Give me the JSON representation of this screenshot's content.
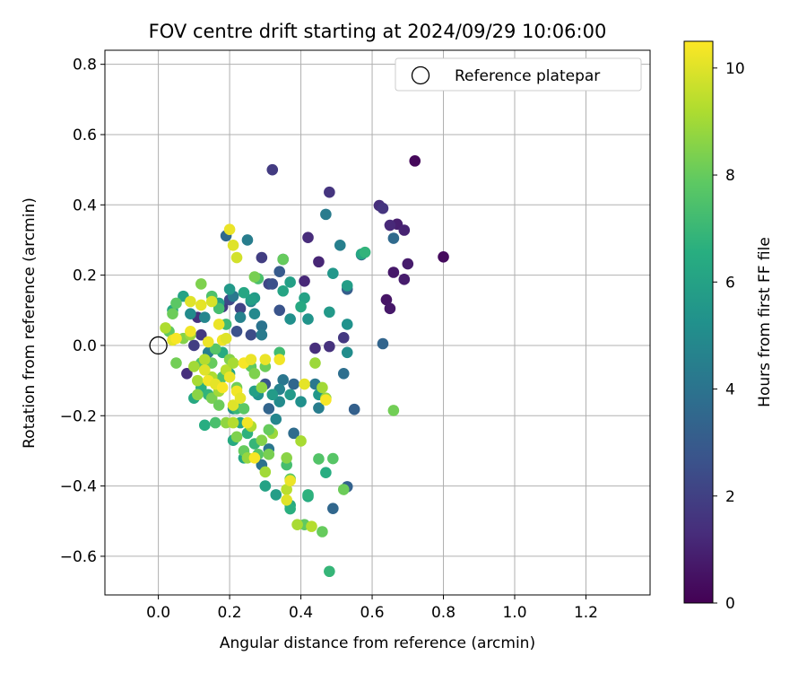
{
  "chart_data": {
    "type": "scatter",
    "title": "FOV centre drift starting at 2024/09/29 10:06:00",
    "xlabel": "Angular distance from reference (arcmin)",
    "ylabel": "Rotation from reference (arcmin)",
    "xlim": [
      -0.15,
      1.38
    ],
    "ylim": [
      -0.71,
      0.84
    ],
    "xticks": [
      0.0,
      0.2,
      0.4,
      0.6,
      0.8,
      1.0,
      1.2
    ],
    "xtick_labels": [
      "0.0",
      "0.2",
      "0.4",
      "0.6",
      "0.8",
      "1.0",
      "1.2"
    ],
    "yticks": [
      -0.6,
      -0.4,
      -0.2,
      0.0,
      0.2,
      0.4,
      0.6,
      0.8
    ],
    "ytick_labels": [
      "−0.6",
      "−0.4",
      "−0.2",
      "0.0",
      "0.2",
      "0.4",
      "0.6",
      "0.8"
    ],
    "grid": true,
    "legend": {
      "position": "top-right",
      "entries": [
        {
          "label": "Reference platepar",
          "marker": "open-circle"
        }
      ]
    },
    "reference_point": {
      "x": 0.0,
      "y": 0.0
    },
    "colorbar": {
      "label": "Hours from first FF file",
      "colormap": "viridis",
      "range": [
        0,
        10.5
      ],
      "ticks": [
        0,
        2,
        4,
        6,
        8,
        10
      ],
      "tick_labels": [
        "0",
        "2",
        "4",
        "6",
        "8",
        "10"
      ]
    },
    "points": [
      {
        "x": 0.72,
        "y": 0.525,
        "h": 0.2
      },
      {
        "x": 0.8,
        "y": 0.252,
        "h": 0.3
      },
      {
        "x": 0.67,
        "y": 0.345,
        "h": 0.9
      },
      {
        "x": 0.69,
        "y": 0.328,
        "h": 1.0
      },
      {
        "x": 0.7,
        "y": 0.232,
        "h": 0.8
      },
      {
        "x": 0.66,
        "y": 0.208,
        "h": 0.7
      },
      {
        "x": 0.69,
        "y": 0.188,
        "h": 0.8
      },
      {
        "x": 0.64,
        "y": 0.13,
        "h": 0.6
      },
      {
        "x": 0.65,
        "y": 0.105,
        "h": 0.7
      },
      {
        "x": 0.62,
        "y": 0.398,
        "h": 1.4
      },
      {
        "x": 0.63,
        "y": 0.39,
        "h": 1.6
      },
      {
        "x": 0.65,
        "y": 0.342,
        "h": 1.2
      },
      {
        "x": 0.32,
        "y": 0.5,
        "h": 1.8
      },
      {
        "x": 0.48,
        "y": 0.436,
        "h": 1.6
      },
      {
        "x": 0.42,
        "y": 0.307,
        "h": 1.3
      },
      {
        "x": 0.45,
        "y": 0.238,
        "h": 1.1
      },
      {
        "x": 0.41,
        "y": 0.183,
        "h": 1.2
      },
      {
        "x": 0.44,
        "y": -0.008,
        "h": 1.4
      },
      {
        "x": 0.48,
        "y": -0.003,
        "h": 1.5
      },
      {
        "x": 0.52,
        "y": 0.022,
        "h": 1.7
      },
      {
        "x": 0.29,
        "y": 0.25,
        "h": 1.9
      },
      {
        "x": 0.23,
        "y": 0.105,
        "h": 2.1
      },
      {
        "x": 0.18,
        "y": 0.11,
        "h": 1.8
      },
      {
        "x": 0.11,
        "y": 0.08,
        "h": 1.5
      },
      {
        "x": 0.12,
        "y": 0.03,
        "h": 1.7
      },
      {
        "x": 0.08,
        "y": -0.08,
        "h": 1.4
      },
      {
        "x": 0.1,
        "y": 0.0,
        "h": 1.9
      },
      {
        "x": 0.31,
        "y": 0.175,
        "h": 2.2
      },
      {
        "x": 0.2,
        "y": 0.13,
        "h": 2.3
      },
      {
        "x": 0.26,
        "y": 0.03,
        "h": 2.4
      },
      {
        "x": 0.66,
        "y": 0.305,
        "h": 3.6
      },
      {
        "x": 0.63,
        "y": 0.005,
        "h": 3.4
      },
      {
        "x": 0.55,
        "y": -0.182,
        "h": 3.2
      },
      {
        "x": 0.53,
        "y": -0.402,
        "h": 3.3
      },
      {
        "x": 0.49,
        "y": -0.464,
        "h": 3.5
      },
      {
        "x": 0.52,
        "y": -0.08,
        "h": 3.8
      },
      {
        "x": 0.57,
        "y": 0.258,
        "h": 3.0
      },
      {
        "x": 0.53,
        "y": 0.16,
        "h": 3.1
      },
      {
        "x": 0.34,
        "y": 0.21,
        "h": 3.0
      },
      {
        "x": 0.35,
        "y": 0.245,
        "h": 2.9
      },
      {
        "x": 0.3,
        "y": -0.11,
        "h": 2.8
      },
      {
        "x": 0.31,
        "y": -0.18,
        "h": 3.4
      },
      {
        "x": 0.38,
        "y": -0.25,
        "h": 3.7
      },
      {
        "x": 0.38,
        "y": -0.11,
        "h": 3.5
      },
      {
        "x": 0.31,
        "y": -0.295,
        "h": 4.1
      },
      {
        "x": 0.29,
        "y": -0.34,
        "h": 3.9
      },
      {
        "x": 0.32,
        "y": 0.175,
        "h": 2.6
      },
      {
        "x": 0.34,
        "y": 0.1,
        "h": 2.7
      },
      {
        "x": 0.22,
        "y": 0.04,
        "h": 2.6
      },
      {
        "x": 0.47,
        "y": 0.373,
        "h": 4.3
      },
      {
        "x": 0.51,
        "y": 0.285,
        "h": 4.5
      },
      {
        "x": 0.25,
        "y": 0.3,
        "h": 4.4
      },
      {
        "x": 0.19,
        "y": 0.312,
        "h": 3.6
      },
      {
        "x": 0.44,
        "y": -0.11,
        "h": 4.2
      },
      {
        "x": 0.45,
        "y": -0.178,
        "h": 4.4
      },
      {
        "x": 0.35,
        "y": -0.098,
        "h": 4.1
      },
      {
        "x": 0.34,
        "y": -0.125,
        "h": 4.6
      },
      {
        "x": 0.33,
        "y": -0.21,
        "h": 4.8
      },
      {
        "x": 0.29,
        "y": 0.055,
        "h": 4.0
      },
      {
        "x": 0.29,
        "y": 0.03,
        "h": 4.3
      },
      {
        "x": 0.26,
        "y": 0.125,
        "h": 4.7
      },
      {
        "x": 0.27,
        "y": 0.09,
        "h": 4.9
      },
      {
        "x": 0.23,
        "y": 0.08,
        "h": 4.6
      },
      {
        "x": 0.21,
        "y": 0.14,
        "h": 4.2
      },
      {
        "x": 0.13,
        "y": 0.08,
        "h": 4.8
      },
      {
        "x": 0.09,
        "y": 0.09,
        "h": 5.0
      },
      {
        "x": 0.14,
        "y": -0.02,
        "h": 4.5
      },
      {
        "x": 0.37,
        "y": 0.075,
        "h": 5.2
      },
      {
        "x": 0.42,
        "y": 0.075,
        "h": 5.4
      },
      {
        "x": 0.48,
        "y": 0.095,
        "h": 5.6
      },
      {
        "x": 0.53,
        "y": 0.06,
        "h": 5.3
      },
      {
        "x": 0.53,
        "y": -0.02,
        "h": 5.1
      },
      {
        "x": 0.49,
        "y": 0.205,
        "h": 5.5
      },
      {
        "x": 0.53,
        "y": 0.17,
        "h": 5.8
      },
      {
        "x": 0.57,
        "y": 0.26,
        "h": 6.2
      },
      {
        "x": 0.58,
        "y": 0.265,
        "h": 6.8
      },
      {
        "x": 0.41,
        "y": 0.135,
        "h": 6.0
      },
      {
        "x": 0.4,
        "y": 0.11,
        "h": 6.3
      },
      {
        "x": 0.37,
        "y": 0.18,
        "h": 5.9
      },
      {
        "x": 0.35,
        "y": 0.155,
        "h": 6.1
      },
      {
        "x": 0.27,
        "y": 0.135,
        "h": 5.7
      },
      {
        "x": 0.26,
        "y": 0.13,
        "h": 5.9
      },
      {
        "x": 0.24,
        "y": 0.15,
        "h": 6.2
      },
      {
        "x": 0.2,
        "y": 0.16,
        "h": 5.6
      },
      {
        "x": 0.17,
        "y": 0.12,
        "h": 5.8
      },
      {
        "x": 0.07,
        "y": 0.14,
        "h": 6.0
      },
      {
        "x": 0.04,
        "y": 0.1,
        "h": 6.2
      },
      {
        "x": 0.45,
        "y": -0.14,
        "h": 5.5
      },
      {
        "x": 0.4,
        "y": -0.16,
        "h": 5.2
      },
      {
        "x": 0.37,
        "y": -0.14,
        "h": 5.6
      },
      {
        "x": 0.34,
        "y": -0.16,
        "h": 5.0
      },
      {
        "x": 0.32,
        "y": -0.14,
        "h": 5.7
      },
      {
        "x": 0.28,
        "y": -0.14,
        "h": 5.3
      },
      {
        "x": 0.27,
        "y": -0.13,
        "h": 5.9
      },
      {
        "x": 0.21,
        "y": -0.18,
        "h": 5.4
      },
      {
        "x": 0.23,
        "y": -0.22,
        "h": 6.1
      },
      {
        "x": 0.21,
        "y": -0.27,
        "h": 6.4
      },
      {
        "x": 0.24,
        "y": -0.32,
        "h": 6.2
      },
      {
        "x": 0.3,
        "y": -0.4,
        "h": 6.0
      },
      {
        "x": 0.33,
        "y": -0.425,
        "h": 5.8
      },
      {
        "x": 0.37,
        "y": -0.455,
        "h": 6.3
      },
      {
        "x": 0.37,
        "y": -0.465,
        "h": 6.6
      },
      {
        "x": 0.42,
        "y": -0.43,
        "h": 6.4
      },
      {
        "x": 0.42,
        "y": -0.425,
        "h": 6.7
      },
      {
        "x": 0.47,
        "y": -0.362,
        "h": 6.5
      },
      {
        "x": 0.48,
        "y": -0.643,
        "h": 6.9
      },
      {
        "x": 0.18,
        "y": -0.02,
        "h": 6.4
      },
      {
        "x": 0.2,
        "y": -0.08,
        "h": 6.1
      },
      {
        "x": 0.12,
        "y": -0.12,
        "h": 6.6
      },
      {
        "x": 0.14,
        "y": -0.14,
        "h": 6.8
      },
      {
        "x": 0.1,
        "y": -0.15,
        "h": 6.3
      },
      {
        "x": 0.13,
        "y": -0.227,
        "h": 6.5
      },
      {
        "x": 0.25,
        "y": -0.25,
        "h": 6.7
      },
      {
        "x": 0.27,
        "y": -0.28,
        "h": 6.9
      },
      {
        "x": 0.22,
        "y": -0.18,
        "h": 7.0
      },
      {
        "x": 0.34,
        "y": -0.02,
        "h": 7.2
      },
      {
        "x": 0.19,
        "y": 0.06,
        "h": 7.1
      },
      {
        "x": 0.28,
        "y": 0.19,
        "h": 7.4
      },
      {
        "x": 0.17,
        "y": 0.105,
        "h": 7.3
      },
      {
        "x": 0.15,
        "y": 0.14,
        "h": 7.5
      },
      {
        "x": 0.49,
        "y": -0.322,
        "h": 7.7
      },
      {
        "x": 0.45,
        "y": -0.323,
        "h": 7.6
      },
      {
        "x": 0.36,
        "y": -0.34,
        "h": 7.3
      },
      {
        "x": 0.37,
        "y": -0.38,
        "h": 7.8
      },
      {
        "x": 0.41,
        "y": -0.51,
        "h": 7.9
      },
      {
        "x": 0.46,
        "y": -0.53,
        "h": 8.0
      },
      {
        "x": 0.52,
        "y": -0.41,
        "h": 8.1
      },
      {
        "x": 0.66,
        "y": -0.185,
        "h": 8.2
      },
      {
        "x": 0.35,
        "y": 0.245,
        "h": 8.0
      },
      {
        "x": 0.27,
        "y": 0.195,
        "h": 8.3
      },
      {
        "x": 0.05,
        "y": 0.12,
        "h": 7.8
      },
      {
        "x": 0.04,
        "y": 0.09,
        "h": 8.1
      },
      {
        "x": 0.12,
        "y": 0.175,
        "h": 8.4
      },
      {
        "x": 0.05,
        "y": -0.05,
        "h": 8.2
      },
      {
        "x": 0.03,
        "y": 0.04,
        "h": 7.9
      },
      {
        "x": 0.07,
        "y": 0.02,
        "h": 8.5
      },
      {
        "x": 0.16,
        "y": -0.01,
        "h": 7.7
      },
      {
        "x": 0.12,
        "y": -0.05,
        "h": 7.6
      },
      {
        "x": 0.15,
        "y": -0.05,
        "h": 8.0
      },
      {
        "x": 0.18,
        "y": -0.09,
        "h": 7.5
      },
      {
        "x": 0.15,
        "y": -0.15,
        "h": 8.3
      },
      {
        "x": 0.11,
        "y": -0.14,
        "h": 8.6
      },
      {
        "x": 0.17,
        "y": -0.17,
        "h": 8.1
      },
      {
        "x": 0.16,
        "y": -0.22,
        "h": 7.4
      },
      {
        "x": 0.19,
        "y": -0.22,
        "h": 8.7
      },
      {
        "x": 0.22,
        "y": -0.12,
        "h": 8.2
      },
      {
        "x": 0.24,
        "y": -0.18,
        "h": 7.8
      },
      {
        "x": 0.22,
        "y": -0.26,
        "h": 8.4
      },
      {
        "x": 0.24,
        "y": -0.3,
        "h": 8.0
      },
      {
        "x": 0.25,
        "y": -0.32,
        "h": 8.8
      },
      {
        "x": 0.29,
        "y": -0.27,
        "h": 8.5
      },
      {
        "x": 0.28,
        "y": -0.31,
        "h": 7.7
      },
      {
        "x": 0.31,
        "y": -0.31,
        "h": 8.3
      },
      {
        "x": 0.32,
        "y": -0.25,
        "h": 8.9
      },
      {
        "x": 0.31,
        "y": -0.24,
        "h": 8.0
      },
      {
        "x": 0.36,
        "y": -0.32,
        "h": 8.6
      },
      {
        "x": 0.3,
        "y": -0.06,
        "h": 8.1
      },
      {
        "x": 0.26,
        "y": -0.06,
        "h": 7.9
      },
      {
        "x": 0.27,
        "y": -0.08,
        "h": 8.4
      },
      {
        "x": 0.29,
        "y": -0.12,
        "h": 8.7
      },
      {
        "x": 0.2,
        "y": -0.04,
        "h": 8.5
      },
      {
        "x": 0.44,
        "y": -0.05,
        "h": 8.9
      },
      {
        "x": 0.47,
        "y": -0.15,
        "h": 8.8
      },
      {
        "x": 0.46,
        "y": -0.12,
        "h": 9.0
      },
      {
        "x": 0.4,
        "y": -0.272,
        "h": 9.1
      },
      {
        "x": 0.09,
        "y": 0.03,
        "h": 8.9
      },
      {
        "x": 0.02,
        "y": 0.05,
        "h": 9.2
      },
      {
        "x": 0.1,
        "y": -0.06,
        "h": 9.0
      },
      {
        "x": 0.11,
        "y": -0.1,
        "h": 9.1
      },
      {
        "x": 0.13,
        "y": -0.04,
        "h": 9.3
      },
      {
        "x": 0.15,
        "y": -0.09,
        "h": 9.2
      },
      {
        "x": 0.17,
        "y": -0.13,
        "h": 9.0
      },
      {
        "x": 0.19,
        "y": -0.07,
        "h": 9.4
      },
      {
        "x": 0.21,
        "y": -0.05,
        "h": 9.1
      },
      {
        "x": 0.21,
        "y": -0.22,
        "h": 9.3
      },
      {
        "x": 0.26,
        "y": -0.23,
        "h": 9.2
      },
      {
        "x": 0.3,
        "y": -0.36,
        "h": 9.0
      },
      {
        "x": 0.36,
        "y": -0.41,
        "h": 9.4
      },
      {
        "x": 0.39,
        "y": -0.51,
        "h": 9.1
      },
      {
        "x": 0.43,
        "y": -0.515,
        "h": 9.3
      },
      {
        "x": 0.2,
        "y": 0.33,
        "h": 10.2
      },
      {
        "x": 0.21,
        "y": 0.285,
        "h": 10.0
      },
      {
        "x": 0.22,
        "y": 0.25,
        "h": 9.8
      },
      {
        "x": 0.12,
        "y": 0.115,
        "h": 10.1
      },
      {
        "x": 0.15,
        "y": 0.125,
        "h": 9.9
      },
      {
        "x": 0.09,
        "y": 0.125,
        "h": 10.0
      },
      {
        "x": 0.17,
        "y": 0.06,
        "h": 10.2
      },
      {
        "x": 0.09,
        "y": 0.04,
        "h": 10.3
      },
      {
        "x": 0.04,
        "y": 0.015,
        "h": 10.1
      },
      {
        "x": 0.05,
        "y": 0.02,
        "h": 10.4
      },
      {
        "x": 0.14,
        "y": 0.01,
        "h": 10.2
      },
      {
        "x": 0.18,
        "y": 0.015,
        "h": 10.3
      },
      {
        "x": 0.13,
        "y": -0.07,
        "h": 10.0
      },
      {
        "x": 0.14,
        "y": -0.1,
        "h": 10.3
      },
      {
        "x": 0.16,
        "y": -0.11,
        "h": 10.1
      },
      {
        "x": 0.18,
        "y": -0.12,
        "h": 10.4
      },
      {
        "x": 0.2,
        "y": -0.09,
        "h": 10.2
      },
      {
        "x": 0.22,
        "y": -0.13,
        "h": 10.3
      },
      {
        "x": 0.21,
        "y": -0.17,
        "h": 10.0
      },
      {
        "x": 0.24,
        "y": -0.05,
        "h": 10.4
      },
      {
        "x": 0.26,
        "y": -0.04,
        "h": 10.2
      },
      {
        "x": 0.23,
        "y": -0.15,
        "h": 10.1
      },
      {
        "x": 0.25,
        "y": -0.22,
        "h": 10.3
      },
      {
        "x": 0.27,
        "y": -0.32,
        "h": 10.4
      },
      {
        "x": 0.37,
        "y": -0.385,
        "h": 10.2
      },
      {
        "x": 0.36,
        "y": -0.44,
        "h": 10.0
      },
      {
        "x": 0.34,
        "y": -0.04,
        "h": 10.3
      },
      {
        "x": 0.41,
        "y": -0.11,
        "h": 10.1
      },
      {
        "x": 0.47,
        "y": -0.155,
        "h": 10.4
      },
      {
        "x": 0.3,
        "y": -0.04,
        "h": 10.2
      },
      {
        "x": 0.19,
        "y": 0.02,
        "h": 10.0
      }
    ]
  }
}
